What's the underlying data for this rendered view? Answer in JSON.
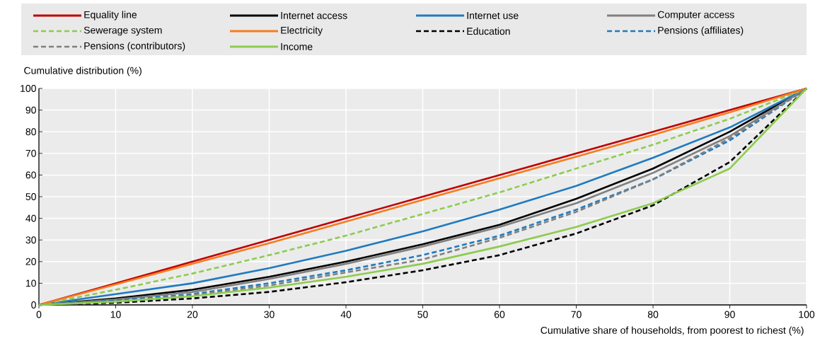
{
  "chart_data": {
    "type": "line",
    "xlabel": "Cumulative share of households, from poorest to richest (%)",
    "ylabel": "Cumulative distribution (%)",
    "x": [
      0,
      10,
      20,
      30,
      40,
      50,
      60,
      70,
      80,
      90,
      100
    ],
    "xlim": [
      0,
      100
    ],
    "xticks": [
      0,
      10,
      20,
      30,
      40,
      50,
      60,
      70,
      80,
      90,
      100
    ],
    "ylim": [
      0,
      100
    ],
    "yticks": [
      0,
      10,
      20,
      30,
      40,
      50,
      60,
      70,
      80,
      90,
      100
    ],
    "grid": true,
    "legend": "top",
    "marker": "none",
    "series": [
      {
        "name": "Equality line",
        "color": "#c00000",
        "line_style": "solid",
        "values": [
          0,
          10,
          20,
          30,
          40,
          50,
          60,
          70,
          80,
          90,
          100
        ]
      },
      {
        "name": "Internet access",
        "color": "#000000",
        "line_style": "solid",
        "values": [
          0,
          3,
          7,
          13,
          20,
          28,
          37,
          49,
          63,
          80,
          100
        ]
      },
      {
        "name": "Internet use",
        "color": "#1f7bc0",
        "line_style": "solid",
        "values": [
          0,
          5,
          10,
          17,
          25,
          34,
          44,
          55,
          68,
          82,
          100
        ]
      },
      {
        "name": "Computer access",
        "color": "#808080",
        "line_style": "solid",
        "values": [
          0,
          2.5,
          6,
          12,
          19,
          27,
          36,
          47,
          61,
          78,
          100
        ]
      },
      {
        "name": "Sewerage system",
        "color": "#8dcc4e",
        "line_style": "dashed",
        "values": [
          0,
          7,
          14.5,
          23,
          32,
          42,
          52,
          63,
          74,
          86,
          100
        ]
      },
      {
        "name": "Electricity",
        "color": "#f47d20",
        "line_style": "solid",
        "values": [
          0,
          9.5,
          19,
          28.5,
          38.5,
          48.5,
          58.5,
          68.5,
          78.5,
          89,
          100
        ]
      },
      {
        "name": "Education",
        "color": "#000000",
        "line_style": "dashed",
        "values": [
          0,
          1,
          3,
          6,
          10.5,
          16,
          23,
          33,
          46,
          66,
          100
        ]
      },
      {
        "name": "Pensions (affiliates)",
        "color": "#1f7bc0",
        "line_style": "dashed",
        "values": [
          0,
          2,
          5,
          10,
          16,
          23,
          32,
          44,
          58,
          76,
          100
        ]
      },
      {
        "name": "Pensions (contributors)",
        "color": "#808080",
        "line_style": "dashed",
        "values": [
          0,
          1.5,
          4.5,
          9,
          15,
          21,
          31,
          43,
          58,
          77,
          100
        ]
      },
      {
        "name": "Income",
        "color": "#8dcc4e",
        "line_style": "solid",
        "values": [
          0,
          1.5,
          4,
          8,
          13,
          19,
          27,
          36,
          47,
          63,
          100
        ]
      }
    ]
  }
}
